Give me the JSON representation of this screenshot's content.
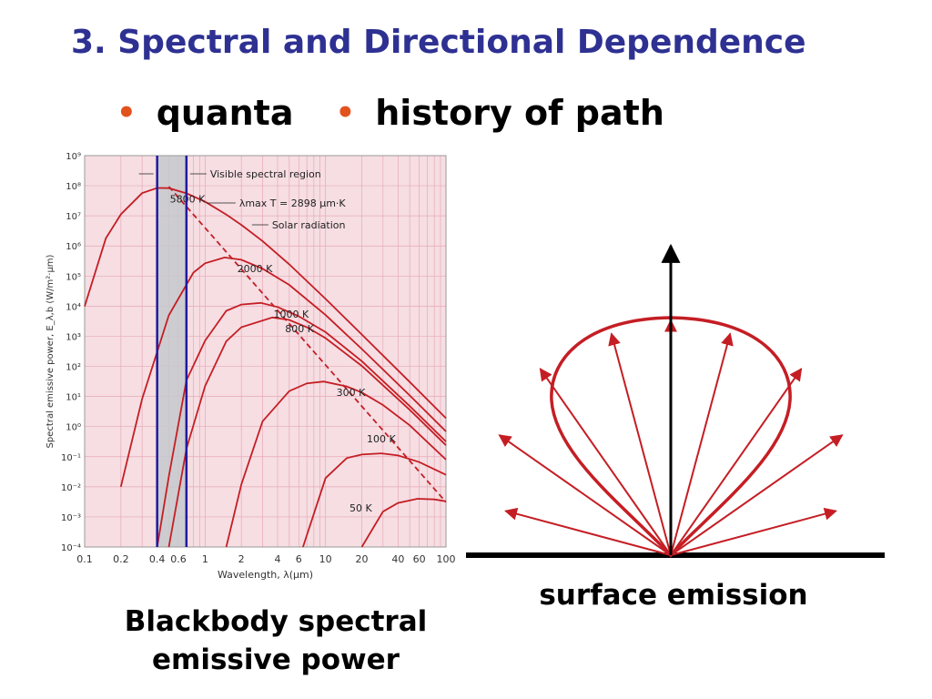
{
  "slide": {
    "title": "3. Spectral and Directional Dependence",
    "bullets": [
      "quanta",
      "history of path"
    ],
    "caption_left_line1": "Blackbody spectral",
    "caption_left_line2": "emissive power",
    "caption_right": "surface emission"
  },
  "colors": {
    "title": "#2e3192",
    "bullet": "#e2521d",
    "curve": "#c41e24",
    "visible_band_lines": "#1f1a9e",
    "chart_bg": "#f6dee3",
    "visible_band_fill": "#c5c9cc"
  },
  "chart_data": {
    "type": "line",
    "xscale": "log",
    "yscale": "log",
    "xlabel": "Wavelength, λ(μm)",
    "ylabel": "Spectral emissive power, E_λ,b (W/m²·μm)",
    "xlim": [
      0.1,
      100
    ],
    "ylim": [
      0.0001,
      1000000000
    ],
    "x_ticks": [
      "0.1",
      "0.2",
      "0.4",
      "0.6",
      "1",
      "2",
      "4",
      "6",
      "10",
      "20",
      "40",
      "60",
      "100"
    ],
    "y_ticks": [
      "10⁻⁴",
      "10⁻³",
      "10⁻²",
      "10⁻¹",
      "10⁰",
      "10¹",
      "10²",
      "10³",
      "10⁴",
      "10⁵",
      "10⁶",
      "10⁷",
      "10⁸",
      "10⁹"
    ],
    "grid": true,
    "visible_region": [
      0.4,
      0.7
    ],
    "series_label_layout": [
      "right",
      "right",
      "right",
      "right",
      "right",
      "above",
      "left"
    ],
    "series": [
      {
        "name": "5800 K",
        "x": [
          0.1,
          0.15,
          0.2,
          0.3,
          0.4,
          0.5,
          0.7,
          1,
          1.5,
          2,
          3,
          5,
          10,
          20,
          50,
          100
        ],
        "values": [
          9870,
          1800000,
          11200000,
          56800000,
          84600000,
          83200000,
          56200000,
          29500000,
          11100000,
          5020000,
          1450000,
          245000,
          17400,
          1150,
          30.2,
          1.9
        ]
      },
      {
        "name": "2000 K",
        "x": [
          0.2,
          0.3,
          0.5,
          0.8,
          1,
          1.45,
          2,
          3,
          5,
          10,
          20,
          50,
          100
        ],
        "values": [
          0.01,
          8.2,
          4980,
          130000,
          266000,
          413000,
          349000,
          176000,
          51000,
          5080,
          380,
          10.8,
          0.69
        ]
      },
      {
        "name": "1000 K",
        "x": [
          0.4,
          0.5,
          0.7,
          1,
          1.5,
          2,
          2.9,
          4,
          6,
          10,
          20,
          50,
          100
        ],
        "values": [
          0.0001,
          0.022,
          34,
          710,
          7000,
          11300,
          12800,
          9400,
          4600,
          1370,
          149,
          4.78,
          0.32
        ]
      },
      {
        "name": "800 K",
        "x": [
          0.5,
          0.7,
          1,
          1.5,
          2,
          3.62,
          5,
          7,
          10,
          20,
          50,
          100
        ],
        "values": [
          0.0001,
          0.18,
          22,
          680,
          2000,
          4200,
          3500,
          2000,
          865,
          104,
          3.6,
          0.24
        ]
      },
      {
        "name": "300 K",
        "x": [
          1.5,
          2,
          3,
          5,
          7,
          9.66,
          15,
          20,
          30,
          50,
          100
        ],
        "values": [
          0.0001,
          0.012,
          1.5,
          15.1,
          27.3,
          31.3,
          21.5,
          13.6,
          5.2,
          1.1,
          0.08
        ]
      },
      {
        "name": "100 K",
        "x": [
          6.5,
          10,
          15,
          20,
          29,
          40,
          60,
          100
        ],
        "values": [
          0.0001,
          0.0195,
          0.0901,
          0.118,
          0.129,
          0.11,
          0.066,
          0.025
        ]
      },
      {
        "name": "50 K",
        "x": [
          20,
          30,
          40,
          58,
          80,
          100
        ],
        "values": [
          0.0001,
          0.0015,
          0.0029,
          0.004,
          0.0038,
          0.0033
        ]
      }
    ],
    "max_line": {
      "label": "λmax T = 2898 μm·K",
      "x": [
        0.5,
        100
      ],
      "values": [
        94000000,
        0.0031
      ],
      "style": "dashed"
    },
    "annotations": [
      "Visible spectral region",
      "λmax T = 2898 μm·K",
      "Solar radiation"
    ]
  },
  "emission_diagram": {
    "arrow_angles_deg": [
      -75,
      -55,
      -35,
      -15,
      0,
      15,
      35,
      55,
      75
    ]
  }
}
